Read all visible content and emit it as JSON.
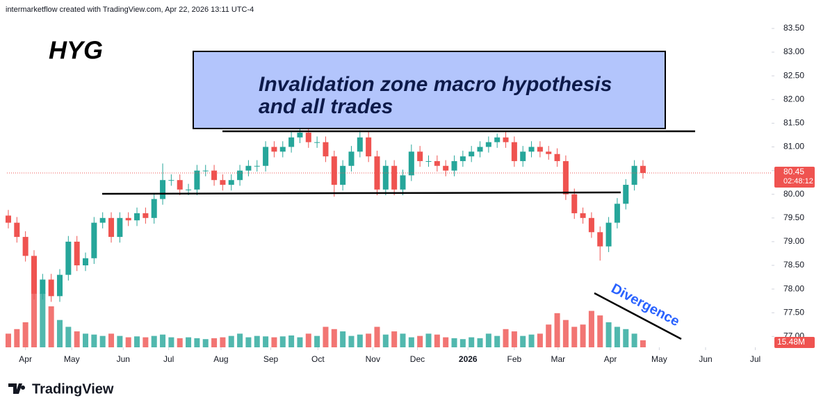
{
  "header": "intermarketflow created with TradingView.com, Apr 22, 2026 13:11 UTC-4",
  "footer": {
    "brand": "TradingView"
  },
  "chart_data": {
    "type": "candlestick",
    "symbol": "HYG",
    "annotations": {
      "box_line1": "Invalidation zone macro hypothesis",
      "box_line2": "and all trades",
      "divergence": "Divergence"
    },
    "x": [
      0,
      1,
      2,
      3,
      4,
      5,
      6,
      7,
      8,
      9,
      10,
      11,
      12,
      13,
      14,
      15,
      16,
      17,
      18,
      19,
      20,
      21,
      22,
      23,
      24,
      25,
      26,
      27,
      28,
      29,
      30,
      31,
      32,
      33,
      34,
      35,
      36,
      37,
      38,
      39,
      40,
      41,
      42,
      43,
      44,
      45,
      46,
      47,
      48,
      49,
      50,
      51,
      52,
      53,
      54,
      55,
      56,
      57,
      58,
      59,
      60,
      61,
      62,
      63,
      64,
      65,
      66,
      67,
      68,
      69,
      70,
      71,
      72,
      73,
      74
    ],
    "open": [
      79.55,
      79.4,
      79.1,
      78.7,
      77.9,
      78.2,
      77.85,
      78.3,
      79.0,
      78.5,
      78.65,
      79.4,
      79.5,
      79.1,
      79.5,
      79.45,
      79.6,
      79.5,
      79.9,
      80.3,
      80.3,
      80.1,
      80.1,
      80.5,
      80.5,
      80.3,
      80.2,
      80.3,
      80.5,
      80.6,
      80.6,
      81.0,
      80.9,
      81.0,
      81.2,
      81.3,
      81.1,
      81.1,
      80.8,
      80.2,
      80.6,
      80.9,
      81.2,
      80.8,
      80.1,
      80.6,
      80.1,
      80.4,
      80.9,
      80.7,
      80.7,
      80.6,
      80.5,
      80.7,
      80.8,
      80.9,
      81.0,
      81.1,
      81.2,
      81.1,
      80.7,
      80.9,
      81.0,
      80.9,
      80.85,
      80.7,
      80.0,
      79.6,
      79.5,
      79.2,
      78.9,
      79.4,
      79.8,
      80.2,
      80.6
    ],
    "high": [
      79.67,
      79.52,
      79.22,
      78.82,
      78.32,
      78.32,
      78.42,
      79.12,
      79.12,
      78.77,
      79.52,
      79.62,
      79.62,
      79.62,
      79.62,
      79.72,
      79.72,
      80.02,
      80.65,
      80.42,
      80.42,
      80.22,
      80.62,
      80.62,
      80.62,
      80.42,
      80.42,
      80.62,
      80.72,
      80.72,
      81.12,
      81.12,
      81.12,
      81.32,
      81.38,
      81.42,
      81.22,
      81.22,
      80.92,
      80.72,
      81.02,
      81.35,
      81.32,
      80.92,
      80.72,
      80.72,
      80.52,
      81.05,
      81.02,
      80.82,
      80.82,
      80.72,
      80.82,
      80.92,
      81.02,
      81.12,
      81.22,
      81.28,
      81.32,
      81.22,
      81.02,
      81.12,
      81.12,
      81.02,
      80.97,
      80.82,
      80.12,
      79.72,
      79.62,
      79.32,
      79.52,
      79.92,
      80.32,
      80.72,
      80.72
    ],
    "low": [
      79.28,
      78.98,
      78.58,
      77.78,
      77.78,
      77.73,
      77.73,
      78.18,
      78.38,
      78.38,
      78.53,
      79.28,
      78.98,
      78.98,
      79.33,
      79.33,
      79.38,
      79.38,
      79.78,
      80.18,
      79.98,
      79.98,
      79.98,
      80.38,
      80.18,
      80.08,
      80.08,
      80.18,
      80.38,
      80.48,
      80.48,
      80.78,
      80.78,
      80.88,
      81.08,
      80.98,
      80.98,
      80.68,
      79.95,
      80.08,
      80.48,
      80.78,
      80.68,
      79.98,
      79.98,
      79.98,
      79.98,
      80.28,
      80.58,
      80.58,
      80.48,
      80.38,
      80.38,
      80.58,
      80.68,
      80.78,
      80.88,
      80.98,
      80.98,
      80.58,
      80.58,
      80.78,
      80.78,
      80.73,
      80.58,
      79.88,
      79.48,
      79.38,
      79.08,
      78.6,
      78.78,
      79.28,
      79.68,
      80.08,
      80.33
    ],
    "close": [
      79.4,
      79.1,
      78.7,
      77.9,
      78.2,
      77.85,
      78.3,
      79.0,
      78.5,
      78.65,
      79.4,
      79.5,
      79.1,
      79.5,
      79.45,
      79.6,
      79.5,
      79.9,
      80.3,
      80.3,
      80.1,
      80.1,
      80.5,
      80.5,
      80.3,
      80.2,
      80.3,
      80.5,
      80.6,
      80.6,
      81.0,
      80.9,
      81.0,
      81.2,
      81.3,
      81.1,
      81.1,
      80.8,
      80.2,
      80.6,
      80.9,
      81.2,
      80.8,
      80.1,
      80.6,
      80.1,
      80.4,
      80.9,
      80.7,
      80.7,
      80.6,
      80.5,
      80.7,
      80.8,
      80.9,
      81.0,
      81.1,
      81.2,
      81.1,
      80.7,
      80.9,
      81.0,
      80.9,
      80.85,
      80.7,
      80.0,
      79.6,
      79.5,
      79.2,
      78.9,
      79.4,
      79.8,
      80.2,
      80.6,
      80.45
    ],
    "volume": [
      30,
      40,
      55,
      160,
      120,
      90,
      60,
      45,
      35,
      30,
      28,
      25,
      30,
      25,
      22,
      24,
      22,
      25,
      28,
      22,
      20,
      22,
      20,
      18,
      20,
      22,
      25,
      30,
      22,
      25,
      24,
      22,
      24,
      26,
      22,
      30,
      25,
      45,
      40,
      35,
      25,
      28,
      30,
      45,
      28,
      35,
      30,
      22,
      25,
      30,
      28,
      22,
      20,
      18,
      22,
      20,
      30,
      25,
      40,
      35,
      25,
      28,
      30,
      50,
      75,
      60,
      45,
      50,
      80,
      70,
      55,
      45,
      40,
      30,
      15.48
    ],
    "last_volume_label": "15.48M",
    "countdown": "02:48:12",
    "up_color": "#26a69a",
    "down_color": "#ef5350",
    "grid": false,
    "xlim": [
      -0.16,
      89.0
    ],
    "xticks": [
      {
        "value": 2.0,
        "label": "Apr"
      },
      {
        "value": 7.4,
        "label": "May"
      },
      {
        "value": 13.4,
        "label": "Jun"
      },
      {
        "value": 18.7,
        "label": "Jul"
      },
      {
        "value": 24.8,
        "label": "Aug"
      },
      {
        "value": 30.6,
        "label": "Sep"
      },
      {
        "value": 36.1,
        "label": "Oct"
      },
      {
        "value": 42.5,
        "label": "Nov"
      },
      {
        "value": 47.7,
        "label": "Dec"
      },
      {
        "value": 53.6,
        "label": "2026"
      },
      {
        "value": 59.0,
        "label": "Feb"
      },
      {
        "value": 64.1,
        "label": "Mar"
      },
      {
        "value": 70.2,
        "label": "Apr"
      },
      {
        "value": 75.9,
        "label": "May"
      },
      {
        "value": 81.3,
        "label": "Jun"
      },
      {
        "value": 87.1,
        "label": "Jul"
      }
    ],
    "ylim": [
      76.77,
      83.69
    ],
    "yticks": [
      {
        "value": 77,
        "label": "77.00"
      },
      {
        "value": 77.5,
        "label": "77.50"
      },
      {
        "value": 78,
        "label": "78.00"
      },
      {
        "value": 78.5,
        "label": "78.50"
      },
      {
        "value": 79,
        "label": "79.00"
      },
      {
        "value": 79.5,
        "label": "79.50"
      },
      {
        "value": 80,
        "label": "80.00"
      },
      {
        "value": 80.5,
        "label": "80.50"
      },
      {
        "value": 81,
        "label": "81.00"
      },
      {
        "value": 81.5,
        "label": "81.50"
      },
      {
        "value": 82,
        "label": "82.00"
      },
      {
        "value": 82.5,
        "label": "82.50"
      },
      {
        "value": 83,
        "label": "83.00"
      },
      {
        "value": 83.5,
        "label": "83.50"
      }
    ],
    "volume_ylim": [
      0,
      720
    ]
  }
}
